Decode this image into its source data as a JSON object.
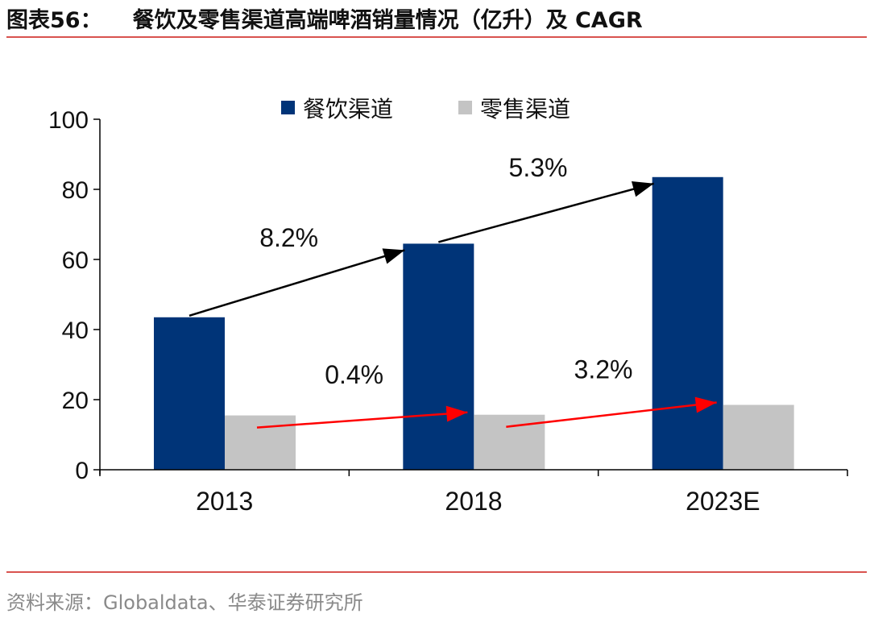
{
  "header": {
    "figure_label": "图表56：",
    "title": "餐饮及零售渠道高端啤酒销量情况（亿升）及 CAGR"
  },
  "footer": {
    "source": "资料来源：Globaldata、华泰证券研究所"
  },
  "colors": {
    "rule": "#d9534f",
    "series_catering": "#003478",
    "series_retail": "#c4c4c4",
    "arrow_catering": "#000000",
    "arrow_retail": "#ff0000"
  },
  "chart_data": {
    "type": "bar",
    "title": "餐饮及零售渠道高端啤酒销量情况（亿升）及 CAGR",
    "xlabel": "",
    "ylabel": "",
    "ylim": [
      0,
      100
    ],
    "yticks": [
      0,
      20,
      40,
      60,
      80,
      100
    ],
    "tick_labels": [
      "0",
      "20",
      "40",
      "60",
      "80",
      "100"
    ],
    "grid": false,
    "legend_position": "top-center",
    "categories": [
      "2013",
      "2018",
      "2023E"
    ],
    "series": [
      {
        "name": "餐饮渠道",
        "values": [
          43.5,
          64.5,
          83.5
        ]
      },
      {
        "name": "零售渠道",
        "values": [
          15.5,
          15.7,
          18.5
        ]
      }
    ],
    "annotations": [
      {
        "text": "8.2%",
        "series": "餐饮渠道",
        "from": "2013",
        "to": "2018"
      },
      {
        "text": "5.3%",
        "series": "餐饮渠道",
        "from": "2018",
        "to": "2023E"
      },
      {
        "text": "0.4%",
        "series": "零售渠道",
        "from": "2013",
        "to": "2018"
      },
      {
        "text": "3.2%",
        "series": "零售渠道",
        "from": "2018",
        "to": "2023E"
      }
    ]
  }
}
